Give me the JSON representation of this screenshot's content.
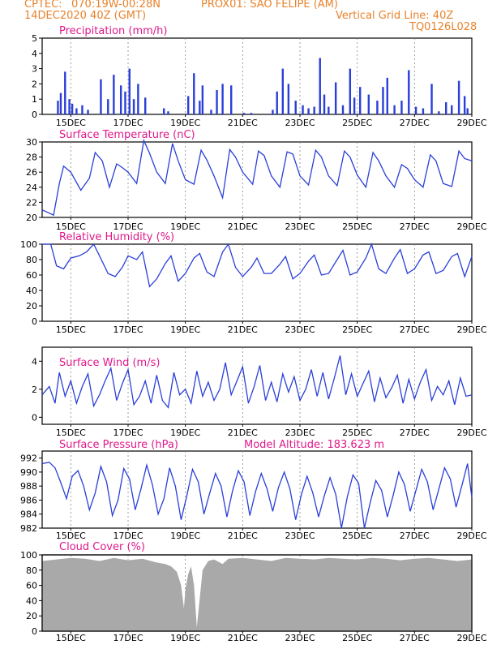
{
  "header": {
    "source": "CPTEC:",
    "coords": "070:19W-00:28N",
    "location": "PROX01: SAO FELIPE (AM)",
    "date": "14DEC2020 40Z (GMT)",
    "grid_note": "Vertical Grid Line: 40Z",
    "code": "TQ0126L028"
  },
  "colors": {
    "line": "#2a3fd8",
    "bar": "#2a3fd8",
    "cloud": "#a9a9a9",
    "title": "#e0198a",
    "header": "#e8822b"
  },
  "x_axis": {
    "start": "14DEC",
    "end": "29DEC",
    "tick_days": [
      15,
      17,
      19,
      21,
      23,
      25,
      27,
      29
    ],
    "tick_labels": [
      "15DEC",
      "17DEC",
      "19DEC",
      "21DEC",
      "23DEC",
      "25DEC",
      "27DEC",
      "29DEC"
    ]
  },
  "chart_data": [
    {
      "id": "precip",
      "type": "bar",
      "title": "Precipitation (mm/h)",
      "ylim": [
        0,
        5
      ],
      "yticks": [
        0,
        1,
        2,
        3,
        4,
        5
      ],
      "x": [
        14.55,
        14.65,
        14.8,
        14.95,
        15.05,
        15.2,
        15.4,
        15.6,
        16.05,
        16.3,
        16.5,
        16.75,
        16.9,
        17.05,
        17.2,
        17.35,
        17.6,
        18.25,
        18.4,
        19.1,
        19.3,
        19.5,
        19.6,
        19.9,
        20.1,
        20.3,
        20.6,
        21.05,
        21.3,
        22.05,
        22.2,
        22.4,
        22.6,
        22.85,
        23.1,
        23.3,
        23.5,
        23.7,
        23.85,
        24.0,
        24.25,
        24.5,
        24.75,
        24.9,
        25.1,
        25.4,
        25.7,
        25.9,
        26.05,
        26.3,
        26.55,
        26.8,
        27.05,
        27.3,
        27.6,
        27.85,
        28.1,
        28.3,
        28.55,
        28.75,
        28.85
      ],
      "values": [
        0.9,
        1.4,
        2.8,
        1.0,
        0.7,
        0.4,
        0.6,
        0.3,
        2.3,
        1.0,
        2.6,
        1.9,
        1.5,
        3.0,
        1.0,
        2.0,
        1.1,
        0.4,
        0.2,
        1.2,
        2.7,
        0.9,
        1.9,
        0.3,
        1.6,
        2.0,
        1.9,
        0.1,
        0.1,
        0.3,
        1.5,
        3.0,
        2.0,
        0.9,
        0.6,
        0.4,
        0.5,
        3.7,
        1.3,
        0.5,
        2.1,
        0.6,
        3.0,
        1.1,
        1.8,
        1.3,
        0.9,
        1.8,
        2.4,
        0.6,
        0.9,
        2.9,
        0.5,
        0.4,
        2.0,
        0.2,
        0.8,
        0.6,
        2.2,
        1.2,
        0.4
      ]
    },
    {
      "id": "temp",
      "type": "line",
      "title": "Surface Temperature (nC)",
      "ylim": [
        20,
        30
      ],
      "yticks": [
        20,
        22,
        24,
        26,
        28,
        30
      ],
      "x": [
        14.0,
        14.4,
        14.6,
        14.75,
        15.0,
        15.35,
        15.65,
        15.85,
        16.1,
        16.35,
        16.6,
        16.8,
        17.0,
        17.3,
        17.55,
        17.75,
        18.0,
        18.3,
        18.55,
        18.75,
        19.0,
        19.3,
        19.55,
        19.75,
        20.0,
        20.3,
        20.55,
        20.75,
        21.0,
        21.35,
        21.55,
        21.75,
        22.0,
        22.3,
        22.55,
        22.75,
        23.0,
        23.3,
        23.55,
        23.75,
        24.0,
        24.3,
        24.55,
        24.75,
        25.0,
        25.3,
        25.55,
        25.75,
        26.0,
        26.3,
        26.55,
        26.75,
        27.0,
        27.3,
        27.55,
        27.75,
        28.0,
        28.3,
        28.55,
        28.75,
        29.0
      ],
      "values": [
        21.0,
        20.3,
        24.5,
        26.8,
        26.0,
        23.6,
        25.2,
        28.6,
        27.5,
        24.0,
        27.1,
        26.6,
        26.0,
        24.5,
        30.2,
        28.5,
        26.0,
        24.5,
        29.8,
        27.5,
        25.0,
        24.4,
        28.9,
        27.6,
        25.5,
        22.6,
        29.0,
        28.0,
        26.0,
        24.4,
        28.8,
        28.2,
        25.5,
        24.0,
        28.7,
        28.4,
        25.5,
        24.3,
        28.9,
        28.0,
        25.5,
        24.2,
        28.8,
        28.0,
        25.6,
        24.0,
        28.6,
        27.5,
        25.5,
        24.0,
        27.0,
        26.5,
        25.0,
        24.0,
        28.3,
        27.5,
        24.5,
        24.1,
        28.8,
        27.8,
        27.5
      ]
    },
    {
      "id": "humidity",
      "type": "line",
      "title": "Relative Humidity (%)",
      "ylim": [
        0,
        100
      ],
      "yticks": [
        0,
        20,
        40,
        60,
        80,
        100
      ],
      "x": [
        14.0,
        14.3,
        14.5,
        14.75,
        15.0,
        15.3,
        15.55,
        15.8,
        16.0,
        16.3,
        16.55,
        16.8,
        17.0,
        17.3,
        17.5,
        17.75,
        18.0,
        18.3,
        18.5,
        18.75,
        19.0,
        19.3,
        19.5,
        19.75,
        20.0,
        20.3,
        20.5,
        20.75,
        21.0,
        21.3,
        21.5,
        21.75,
        22.0,
        22.3,
        22.5,
        22.75,
        23.0,
        23.3,
        23.5,
        23.75,
        24.0,
        24.3,
        24.5,
        24.75,
        25.0,
        25.3,
        25.5,
        25.75,
        26.0,
        26.3,
        26.5,
        26.75,
        27.0,
        27.3,
        27.5,
        27.75,
        28.0,
        28.3,
        28.5,
        28.75,
        29.0
      ],
      "values": [
        100,
        100,
        72,
        68,
        82,
        85,
        90,
        100,
        85,
        62,
        58,
        70,
        85,
        80,
        90,
        45,
        55,
        75,
        85,
        52,
        62,
        82,
        88,
        64,
        58,
        90,
        100,
        70,
        58,
        70,
        82,
        62,
        62,
        74,
        84,
        55,
        62,
        78,
        86,
        60,
        62,
        80,
        92,
        60,
        64,
        82,
        100,
        68,
        62,
        82,
        93,
        62,
        68,
        86,
        90,
        62,
        66,
        84,
        88,
        58,
        84
      ]
    },
    {
      "id": "wind",
      "type": "line",
      "title": "Surface Wind (m/s)",
      "ylim": [
        -0.5,
        5
      ],
      "yticks": [
        0,
        2,
        4
      ],
      "x": [
        14.0,
        14.25,
        14.45,
        14.6,
        14.8,
        15.0,
        15.2,
        15.4,
        15.6,
        15.8,
        16.0,
        16.2,
        16.4,
        16.6,
        16.8,
        17.0,
        17.2,
        17.4,
        17.6,
        17.8,
        18.0,
        18.2,
        18.4,
        18.6,
        18.8,
        19.0,
        19.2,
        19.4,
        19.6,
        19.8,
        20.0,
        20.2,
        20.4,
        20.6,
        20.8,
        21.0,
        21.2,
        21.4,
        21.6,
        21.8,
        22.0,
        22.2,
        22.4,
        22.6,
        22.8,
        23.0,
        23.2,
        23.4,
        23.6,
        23.8,
        24.0,
        24.2,
        24.4,
        24.6,
        24.8,
        25.0,
        25.2,
        25.4,
        25.6,
        25.8,
        26.0,
        26.2,
        26.4,
        26.6,
        26.8,
        27.0,
        27.2,
        27.4,
        27.6,
        27.8,
        28.0,
        28.2,
        28.4,
        28.6,
        28.8,
        29.0
      ],
      "values": [
        1.6,
        2.2,
        1.0,
        3.2,
        1.5,
        2.6,
        1.0,
        2.2,
        3.1,
        0.8,
        1.6,
        2.6,
        3.5,
        1.2,
        2.4,
        3.4,
        0.9,
        1.5,
        2.6,
        1.0,
        3.0,
        1.2,
        0.7,
        3.2,
        1.6,
        2.0,
        1.0,
        3.3,
        1.5,
        2.5,
        1.2,
        2.0,
        3.9,
        1.6,
        2.6,
        3.6,
        1.0,
        2.2,
        3.7,
        1.2,
        2.5,
        1.1,
        3.1,
        1.8,
        2.9,
        1.2,
        2.0,
        3.4,
        1.5,
        3.2,
        1.3,
        2.8,
        4.4,
        1.6,
        3.1,
        1.5,
        2.4,
        3.3,
        1.1,
        2.8,
        1.4,
        2.1,
        3.0,
        1.0,
        2.7,
        1.3,
        2.5,
        3.4,
        1.2,
        2.2,
        1.6,
        2.6,
        0.9,
        2.8,
        1.5,
        1.6
      ]
    },
    {
      "id": "pressure",
      "type": "line",
      "title": "Surface Pressure (hPa)",
      "subtitle": "Model Altitude: 183.623 m",
      "ylim": [
        982,
        993
      ],
      "yticks": [
        982,
        984,
        986,
        988,
        990,
        992
      ],
      "x": [
        14.0,
        14.25,
        14.45,
        14.65,
        14.85,
        15.05,
        15.25,
        15.45,
        15.65,
        15.85,
        16.05,
        16.25,
        16.45,
        16.65,
        16.85,
        17.05,
        17.25,
        17.45,
        17.65,
        17.85,
        18.05,
        18.25,
        18.45,
        18.65,
        18.85,
        19.05,
        19.25,
        19.45,
        19.65,
        19.85,
        20.05,
        20.25,
        20.45,
        20.65,
        20.85,
        21.05,
        21.25,
        21.45,
        21.65,
        21.85,
        22.05,
        22.25,
        22.45,
        22.65,
        22.85,
        23.05,
        23.25,
        23.45,
        23.65,
        23.85,
        24.05,
        24.25,
        24.45,
        24.65,
        24.85,
        25.05,
        25.25,
        25.45,
        25.65,
        25.85,
        26.05,
        26.25,
        26.45,
        26.65,
        26.85,
        27.05,
        27.25,
        27.45,
        27.65,
        27.85,
        28.05,
        28.25,
        28.45,
        28.65,
        28.85,
        29.0
      ],
      "values": [
        991.2,
        991.4,
        990.6,
        988.5,
        986.2,
        989.4,
        990.2,
        988.0,
        984.6,
        987.0,
        990.8,
        988.6,
        983.8,
        986.0,
        990.5,
        989.0,
        984.6,
        987.6,
        991.0,
        988.2,
        984.0,
        986.2,
        990.6,
        988.0,
        983.2,
        986.6,
        990.4,
        988.6,
        984.0,
        987.0,
        989.8,
        988.0,
        983.6,
        987.4,
        990.2,
        988.6,
        983.8,
        987.2,
        989.8,
        987.6,
        984.4,
        987.8,
        990.0,
        987.6,
        983.2,
        986.8,
        989.4,
        987.0,
        983.6,
        986.6,
        989.2,
        986.8,
        982.0,
        986.4,
        989.6,
        988.4,
        982.0,
        985.6,
        988.8,
        987.4,
        983.6,
        986.6,
        990.0,
        988.2,
        984.4,
        987.4,
        990.4,
        988.6,
        984.6,
        987.6,
        990.6,
        989.0,
        985.0,
        988.0,
        991.2,
        986.4
      ]
    },
    {
      "id": "cloud",
      "type": "area",
      "title": "Cloud Cover (%)",
      "ylim": [
        0,
        100
      ],
      "yticks": [
        0,
        20,
        40,
        60,
        80,
        100
      ],
      "x": [
        14.0,
        14.5,
        15.0,
        15.5,
        16.0,
        16.5,
        17.0,
        17.5,
        18.0,
        18.3,
        18.5,
        18.7,
        18.85,
        18.95,
        19.0,
        19.1,
        19.2,
        19.3,
        19.4,
        19.6,
        19.8,
        20.0,
        20.3,
        20.5,
        21.0,
        21.5,
        22.0,
        22.5,
        23.0,
        23.5,
        24.0,
        24.5,
        25.0,
        25.5,
        26.0,
        26.5,
        27.0,
        27.5,
        28.0,
        28.5,
        29.0
      ],
      "values": [
        92,
        94,
        96,
        95,
        92,
        96,
        93,
        95,
        90,
        88,
        85,
        78,
        60,
        30,
        55,
        75,
        85,
        60,
        5,
        80,
        92,
        94,
        88,
        95,
        96,
        94,
        92,
        96,
        95,
        94,
        96,
        95,
        94,
        96,
        95,
        93,
        95,
        96,
        94,
        92,
        94
      ]
    }
  ]
}
